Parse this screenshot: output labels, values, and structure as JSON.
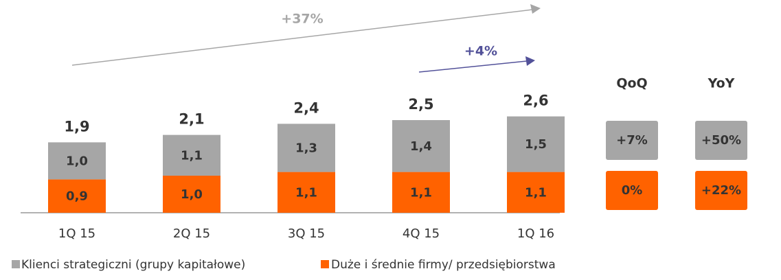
{
  "chart_data": {
    "type": "stacked_bar",
    "categories": [
      "1Q 15",
      "2Q 15",
      "3Q 15",
      "4Q 15",
      "1Q 16"
    ],
    "series": [
      {
        "name": "Duże i średnie firmy/ przedsiębiorstwa",
        "color": "#ff6200",
        "values": [
          0.9,
          1.0,
          1.1,
          1.1,
          1.1
        ],
        "value_labels": [
          "0,9",
          "1,0",
          "1,1",
          "1,1",
          "1,1"
        ]
      },
      {
        "name": "Klienci strategiczni (grupy kapitałowe)",
        "color": "#a6a6a6",
        "values": [
          1.0,
          1.1,
          1.3,
          1.4,
          1.5
        ],
        "value_labels": [
          "1,0",
          "1,1",
          "1,3",
          "1,4",
          "1,5"
        ]
      }
    ],
    "totals": [
      1.9,
      2.1,
      2.4,
      2.5,
      2.6
    ],
    "total_labels": [
      "1,9",
      "2,1",
      "2,4",
      "2,5",
      "2,6"
    ],
    "annotations": [
      {
        "text": "+37%",
        "color": "#a6a6a6"
      },
      {
        "text": "+4%",
        "color": "#525199"
      }
    ],
    "changes": {
      "headers": [
        "QoQ",
        "YoY"
      ],
      "rows": [
        [
          "+7%",
          "+50%"
        ],
        [
          "0%",
          "+22%"
        ]
      ]
    }
  }
}
